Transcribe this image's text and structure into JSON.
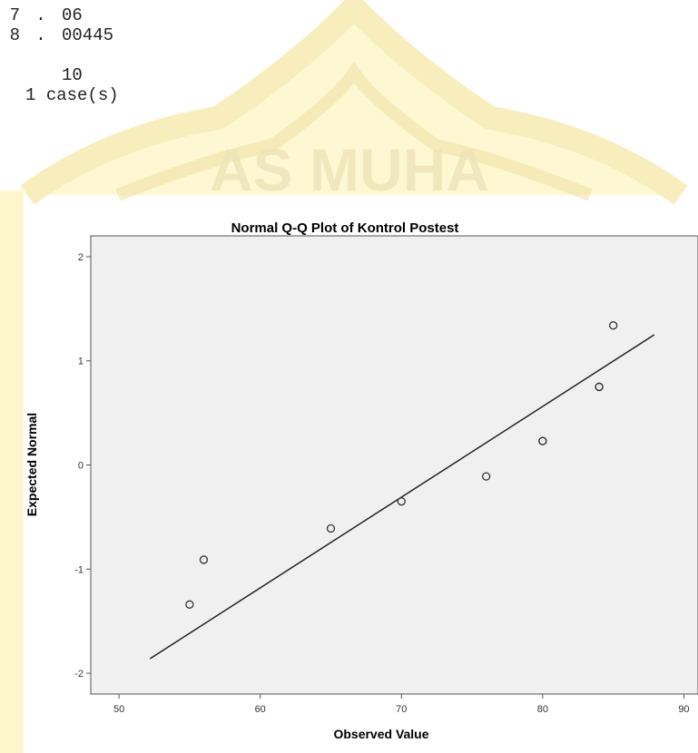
{
  "stem_leaf": {
    "rows": [
      {
        "stem": "7",
        "leaves": "06"
      },
      {
        "stem": "8",
        "leaves": "00445"
      }
    ],
    "separator": ".",
    "total": "10",
    "extreme_count": "1",
    "extreme_label": "case(s)"
  },
  "watermark_text": "AS MUHA",
  "chart_data": {
    "type": "scatter",
    "title": "Normal Q-Q Plot of Kontrol Postest",
    "xlabel": "Observed Value",
    "ylabel": "Expected Normal",
    "xlim": [
      48,
      91
    ],
    "ylim": [
      -2.2,
      2.2
    ],
    "x_ticks": [
      50,
      60,
      70,
      80,
      90
    ],
    "y_ticks": [
      2,
      1,
      0,
      -1,
      -2
    ],
    "points": [
      {
        "x": 55,
        "y": -1.34
      },
      {
        "x": 56,
        "y": -0.91
      },
      {
        "x": 65,
        "y": -0.61
      },
      {
        "x": 70,
        "y": -0.35
      },
      {
        "x": 76,
        "y": -0.11
      },
      {
        "x": 80,
        "y": 0.23
      },
      {
        "x": 80,
        "y": 0.23
      },
      {
        "x": 84,
        "y": 0.75
      },
      {
        "x": 84,
        "y": 0.75
      },
      {
        "x": 85,
        "y": 1.34
      }
    ],
    "reference_line": [
      {
        "x": 52.2,
        "y": -1.86
      },
      {
        "x": 87.9,
        "y": 1.25
      }
    ],
    "colors": {
      "plot_background": "#f0f0f0",
      "marker": "#333333",
      "line": "#222222"
    }
  }
}
